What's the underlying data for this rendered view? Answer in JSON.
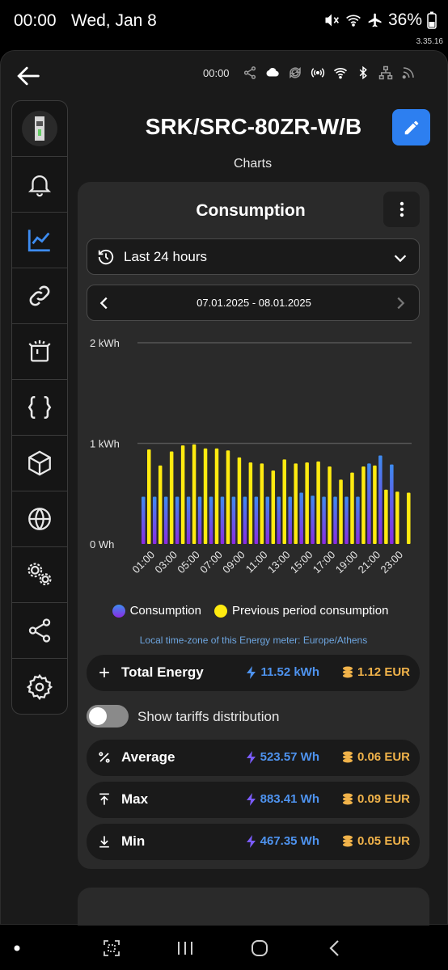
{
  "statusbar": {
    "time": "00:00",
    "date": "Wed, Jan 8",
    "battery": "36%",
    "version": "3.35.16"
  },
  "topbar": {
    "time": "00:00"
  },
  "device": {
    "title": "SRK/SRC-80ZR-W/B",
    "subtitle": "Charts"
  },
  "sidebar": {
    "items": [
      "device-thumbnail",
      "bell-icon",
      "chart-icon",
      "link-icon",
      "device-icon",
      "code-braces-icon",
      "cube-icon",
      "globe-icon",
      "gears-icon",
      "share-icon",
      "settings-icon"
    ],
    "active_index": 2
  },
  "card": {
    "title": "Consumption",
    "range_label": "Last 24 hours",
    "date_range": "07.01.2025 - 08.01.2025",
    "timezone_note": "Local time-zone of this Energy meter: Europe/Athens",
    "total": {
      "label": "Total Energy",
      "energy": "11.52 kWh",
      "cost": "1.12 EUR"
    },
    "tariffs_label": "Show tariffs distribution",
    "average": {
      "label": "Average",
      "energy": "523.57 Wh",
      "cost": "0.06 EUR"
    },
    "max": {
      "label": "Max",
      "energy": "883.41 Wh",
      "cost": "0.09 EUR"
    },
    "min": {
      "label": "Min",
      "energy": "467.35 Wh",
      "cost": "0.05 EUR"
    }
  },
  "colors": {
    "accent": "#2d7ff0",
    "consumption_top": "#3d8cf0",
    "consumption_bottom": "#8a2be2",
    "previous": "#ffeb10"
  },
  "chart_data": {
    "type": "bar",
    "ylabel_ticks": [
      "0 Wh",
      "1 kWh",
      "2 kWh"
    ],
    "ylim": [
      0,
      2000
    ],
    "x_tick_labels": [
      "01:00",
      "03:00",
      "05:00",
      "07:00",
      "09:00",
      "11:00",
      "13:00",
      "15:00",
      "17:00",
      "19:00",
      "21:00",
      "23:00"
    ],
    "categories": [
      "00:00",
      "01:00",
      "02:00",
      "03:00",
      "04:00",
      "05:00",
      "06:00",
      "07:00",
      "08:00",
      "09:00",
      "10:00",
      "11:00",
      "12:00",
      "13:00",
      "14:00",
      "15:00",
      "16:00",
      "17:00",
      "18:00",
      "19:00",
      "20:00",
      "21:00",
      "22:00",
      "23:00"
    ],
    "series": [
      {
        "name": "Consumption",
        "values": [
          470,
          470,
          470,
          470,
          470,
          470,
          470,
          470,
          470,
          470,
          470,
          470,
          470,
          470,
          510,
          480,
          470,
          470,
          470,
          470,
          800,
          880,
          790,
          0
        ]
      },
      {
        "name": "Previous period consumption",
        "values": [
          940,
          780,
          920,
          980,
          990,
          950,
          950,
          930,
          860,
          810,
          800,
          730,
          840,
          800,
          810,
          820,
          770,
          640,
          710,
          770,
          780,
          540,
          520,
          510
        ]
      }
    ],
    "legend_position": "bottom"
  }
}
